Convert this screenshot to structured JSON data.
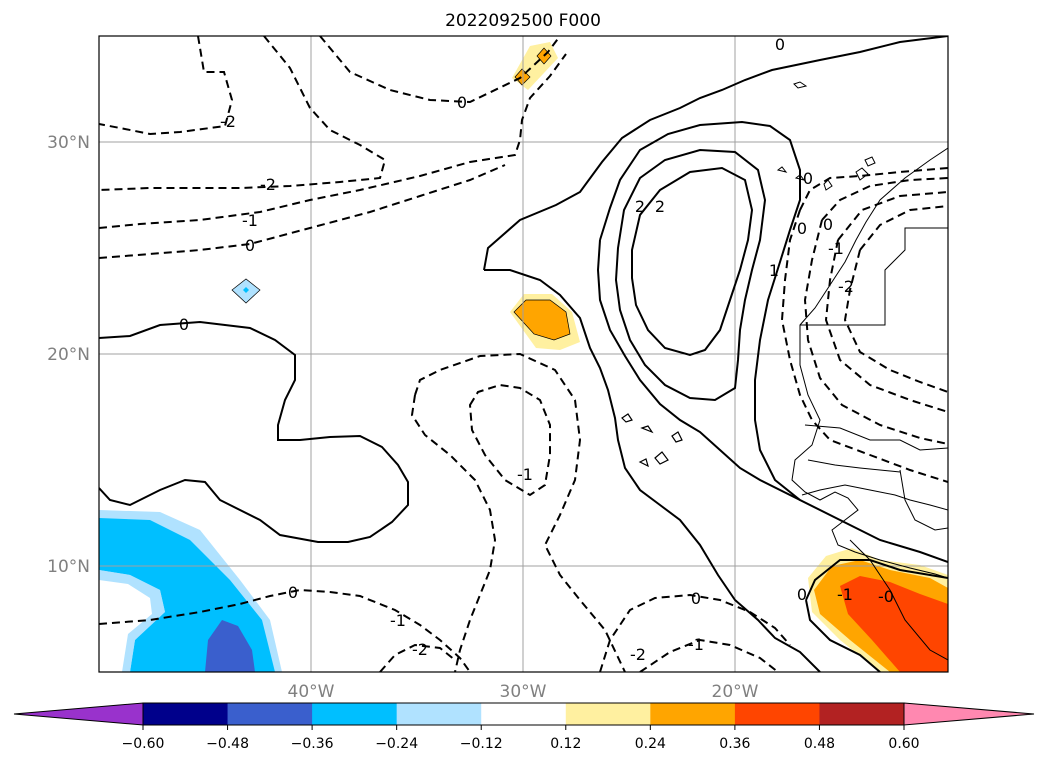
{
  "map": {
    "title": "2022092500 F000",
    "lat_labels": [
      "30°N",
      "20°N",
      "10°N"
    ],
    "lon_labels": [
      "40°W",
      "30°W",
      "20°W"
    ]
  },
  "contour_labels": [
    "0",
    "-2",
    "-2",
    "-1",
    "0",
    "0",
    "-1",
    "-2",
    "-1",
    "0",
    "-1",
    "-2",
    "0",
    "-1",
    "0",
    "0",
    "2",
    "2",
    "1",
    "0",
    "0",
    "-2",
    "-1",
    "0",
    "-0"
  ],
  "colorbar": {
    "ticks": [
      "−0.60",
      "−0.48",
      "−0.36",
      "−0.24",
      "−0.12",
      "0.12",
      "0.24",
      "0.36",
      "0.48",
      "0.60"
    ],
    "colors": {
      "under": "#9932cc",
      "bins": [
        "#00008b",
        "#3a5fcd",
        "#00bfff",
        "#b0e2ff",
        "#ffffff",
        "#fff0a0",
        "#ffa500",
        "#ff4500",
        "#b22222"
      ],
      "over": "#ff88b0"
    }
  }
}
